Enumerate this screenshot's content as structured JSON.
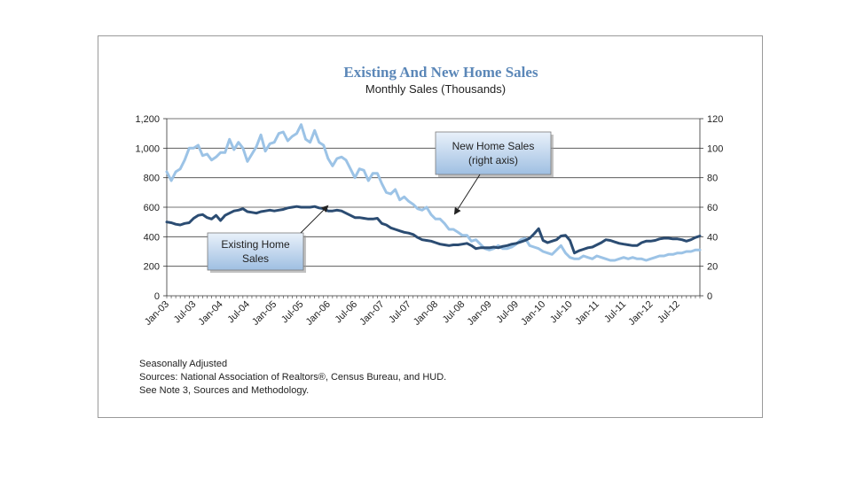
{
  "chart_data": {
    "type": "line",
    "title": "Existing And New Home Sales",
    "subtitle": "Monthly Sales (Thousands)",
    "x_tick_labels": [
      "Jan-03",
      "Jul-03",
      "Jan-04",
      "Jul-04",
      "Jan-05",
      "Jul-05",
      "Jan-06",
      "Jul-06",
      "Jan-07",
      "Jul-07",
      "Jan-08",
      "Jul-08",
      "Jan-09",
      "Jul-09",
      "Jan-10",
      "Jul-10",
      "Jan-11",
      "Jul-11",
      "Jan-12",
      "Jul-12"
    ],
    "y_left": {
      "ylim": [
        0,
        1200
      ],
      "ticks": [
        0,
        200,
        400,
        600,
        800,
        1000,
        1200
      ],
      "tick_labels": [
        "0",
        "200",
        "400",
        "600",
        "800",
        "1,000",
        "1,200"
      ]
    },
    "y_right": {
      "ylim": [
        0,
        120
      ],
      "ticks": [
        0,
        20,
        40,
        60,
        80,
        100,
        120
      ],
      "tick_labels": [
        "0",
        "20",
        "40",
        "60",
        "80",
        "100",
        "120"
      ]
    },
    "grid": "horizontal",
    "series": [
      {
        "name": "Existing Home Sales",
        "axis": "left",
        "color": "#2b4c72",
        "start": "Jan-03",
        "values": [
          500,
          495,
          485,
          480,
          490,
          495,
          525,
          545,
          550,
          530,
          520,
          545,
          510,
          545,
          560,
          575,
          580,
          590,
          570,
          565,
          560,
          570,
          575,
          580,
          575,
          580,
          585,
          595,
          600,
          605,
          600,
          600,
          600,
          605,
          595,
          590,
          575,
          575,
          580,
          575,
          560,
          545,
          530,
          530,
          525,
          520,
          520,
          525,
          490,
          480,
          460,
          450,
          440,
          430,
          425,
          415,
          395,
          380,
          375,
          370,
          360,
          350,
          345,
          340,
          345,
          345,
          350,
          355,
          340,
          320,
          325,
          325,
          325,
          330,
          325,
          335,
          340,
          350,
          355,
          365,
          375,
          390,
          420,
          455,
          375,
          360,
          370,
          380,
          405,
          410,
          375,
          290,
          305,
          315,
          325,
          330,
          345,
          360,
          380,
          375,
          365,
          355,
          350,
          345,
          340,
          340,
          360,
          370,
          370,
          375,
          385,
          390,
          390,
          385,
          385,
          380,
          370,
          380,
          395,
          405
        ]
      },
      {
        "name": "New Home Sales",
        "axis": "right",
        "color": "#9cc3e6",
        "start": "Jan-03",
        "values": [
          84,
          78,
          84,
          86,
          92,
          100,
          100,
          102,
          95,
          96,
          92,
          94,
          97,
          97,
          106,
          99,
          104,
          100,
          91,
          96,
          101,
          109,
          98,
          103,
          104,
          110,
          111,
          105,
          108,
          110,
          116,
          106,
          104,
          112,
          104,
          102,
          93,
          88,
          93,
          94,
          92,
          86,
          80,
          86,
          85,
          78,
          83,
          83,
          76,
          70,
          69,
          72,
          65,
          67,
          64,
          62,
          59,
          58,
          60,
          55,
          52,
          52,
          49,
          45,
          45,
          43,
          41,
          41,
          37,
          38,
          35,
          32,
          31,
          32,
          34,
          32,
          32,
          33,
          35,
          38,
          39,
          34,
          33,
          32,
          30,
          29,
          28,
          31,
          34,
          29,
          26,
          25,
          25,
          27,
          26,
          25,
          27,
          26,
          25,
          24,
          24,
          25,
          26,
          25,
          26,
          25,
          25,
          24,
          25,
          26,
          27,
          27,
          28,
          28,
          29,
          29,
          30,
          30,
          31,
          31
        ]
      }
    ],
    "callouts": [
      {
        "label_lines": [
          "New Home Sales",
          "(right axis)"
        ]
      },
      {
        "label_lines": [
          "Existing Home",
          "Sales"
        ]
      }
    ],
    "notes": [
      "Seasonally Adjusted",
      "Sources:  National Association of Realtors®, Census Bureau, and HUD.",
      "See Note 3, Sources and Methodology."
    ]
  }
}
